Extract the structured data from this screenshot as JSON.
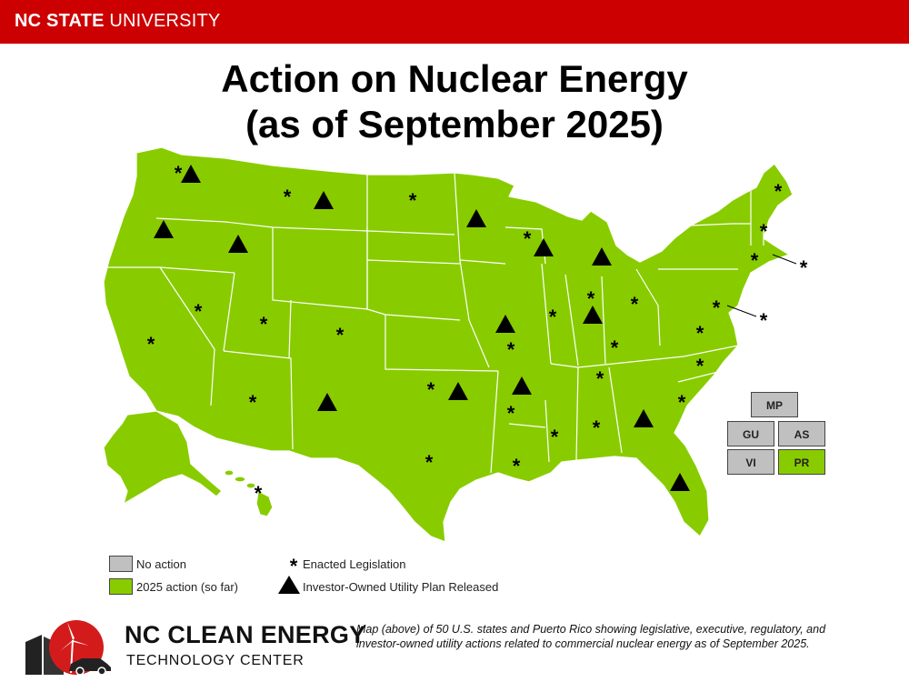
{
  "header": {
    "university_bold": "NC STATE",
    "university_rest": " UNIVERSITY"
  },
  "title": {
    "line1": "Action on Nuclear Energy",
    "line2": "(as of September 2025)"
  },
  "colors": {
    "brand_red": "#cc0000",
    "action_green": "#88cc00",
    "no_action_gray": "#c0c0c0",
    "border": "#ffffff"
  },
  "territories": [
    {
      "label": "MP",
      "status": "no-action"
    },
    {
      "label": "GU",
      "status": "no-action"
    },
    {
      "label": "AS",
      "status": "no-action"
    },
    {
      "label": "VI",
      "status": "no-action"
    },
    {
      "label": "PR",
      "status": "2025-action"
    }
  ],
  "states_enacted_legislation": [
    "WA",
    "MT",
    "ND",
    "WI",
    "NV",
    "UT",
    "CO",
    "CA",
    "AZ",
    "OK",
    "MO",
    "IL",
    "IN",
    "OH",
    "KY",
    "TN",
    "AR",
    "MS",
    "AL",
    "LA",
    "TX",
    "VA",
    "NC",
    "SC",
    "ME",
    "NH",
    "CT",
    "RI",
    "MD",
    "HI",
    "DE"
  ],
  "states_iou_plan_released": [
    "WA",
    "OR",
    "ID",
    "MT",
    "MN",
    "WI",
    "MI",
    "MO",
    "IN",
    "OK",
    "AR",
    "NM",
    "GA",
    "FL"
  ],
  "legend": {
    "no_action": "No action",
    "action_2025": "2025 action (so far)",
    "enacted": "Enacted Legislation",
    "iou_plan": "Investor-Owned Utility Plan Released"
  },
  "logo": {
    "line1": "NC CLEAN ENERGY",
    "line2": "TECHNOLOGY CENTER"
  },
  "caption": "Map (above) of 50 U.S. states and Puerto Rico showing legislative, executive, regulatory, and investor-owned utility actions related to commercial nuclear energy as of September 2025."
}
